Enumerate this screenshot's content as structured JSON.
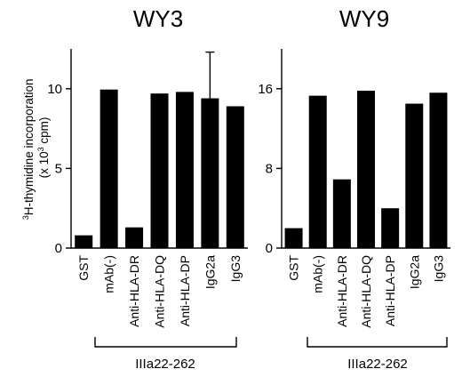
{
  "y_axis_label": {
    "line1_sup": "3",
    "line1_text": "H-thymidine incorporation",
    "line2_pre": "(x 10",
    "line2_sup": "3",
    "line2_post": " cpm)"
  },
  "chart_data": [
    {
      "type": "bar",
      "title": "WY3",
      "categories": [
        "GST",
        "mAb(-)",
        "Anti-HLA-DR",
        "Anti-HLA-DQ",
        "Anti-HLA-DP",
        "IgG2a",
        "IgG3"
      ],
      "values": [
        0.8,
        9.95,
        1.3,
        9.7,
        9.8,
        9.4,
        8.9
      ],
      "error_upper": [
        null,
        null,
        null,
        null,
        null,
        12.3,
        null
      ],
      "ylim": [
        0,
        12.5
      ],
      "yticks": [
        0,
        5,
        10
      ],
      "group_label": "IIIa22-262",
      "group_categories": [
        "mAb(-)",
        "Anti-HLA-DR",
        "Anti-HLA-DQ",
        "Anti-HLA-DP",
        "IgG2a",
        "IgG3"
      ]
    },
    {
      "type": "bar",
      "title": "WY9",
      "categories": [
        "GST",
        "mAb(-)",
        "Anti-HLA-DR",
        "Anti-HLA-DQ",
        "Anti-HLA-DP",
        "IgG2a",
        "IgG3"
      ],
      "values": [
        2.0,
        15.3,
        6.9,
        15.8,
        4.0,
        14.5,
        15.6
      ],
      "ylim": [
        0,
        20
      ],
      "yticks": [
        0,
        8,
        16
      ],
      "group_label": "IIIa22-262",
      "group_categories": [
        "mAb(-)",
        "Anti-HLA-DR",
        "Anti-HLA-DQ",
        "Anti-HLA-DP",
        "IgG2a",
        "IgG3"
      ]
    }
  ]
}
